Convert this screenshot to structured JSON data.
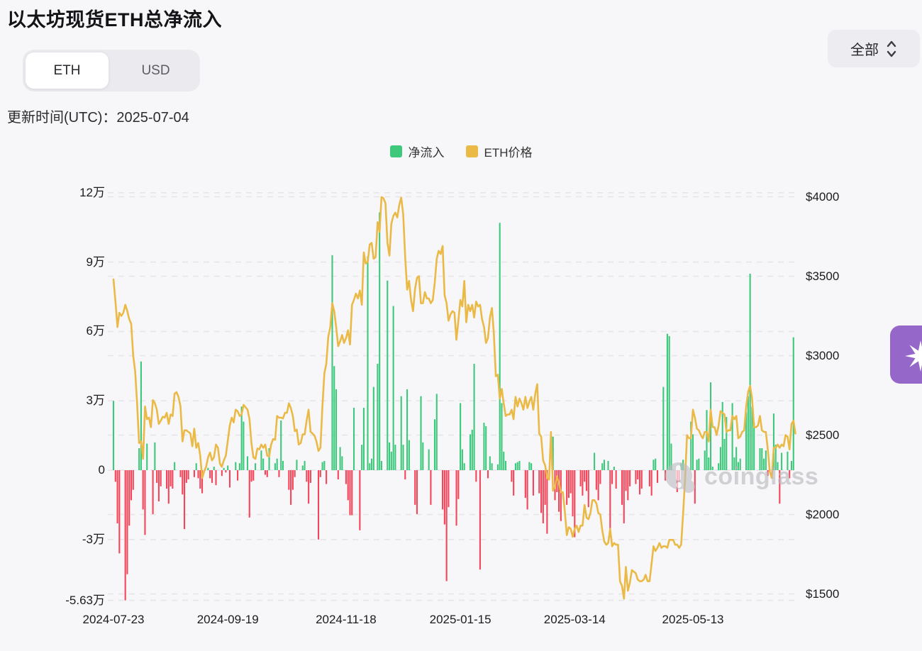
{
  "header": {
    "title": "以太坊现货ETH总净流入",
    "unit_toggle": {
      "options": [
        "ETH",
        "USD"
      ],
      "selected": "ETH"
    },
    "update_time": "更新时间(UTC)：2025-07-04",
    "range_selector": {
      "value": "全部"
    }
  },
  "legend": [
    {
      "label": "净流入",
      "color": "#3dc87c"
    },
    {
      "label": "ETH价格",
      "color": "#eab946"
    }
  ],
  "watermark": {
    "text": "coinglass"
  },
  "colors": {
    "bar_positive": "#3dc87c",
    "bar_negative": "#f4465a",
    "price_line": "#eab946",
    "gridline": "#e6e6ea",
    "fab_purple": "#9467c9"
  },
  "chart_data": {
    "type": "bar+line",
    "title": "以太坊现货ETH总净流入",
    "start_date": "2024-07-23",
    "end_date": "2025-07-04",
    "x_ticks": [
      {
        "label": "2024-07-23",
        "day": 0
      },
      {
        "label": "2024-09-19",
        "day": 58
      },
      {
        "label": "2024-11-18",
        "day": 118
      },
      {
        "label": "2025-01-15",
        "day": 176
      },
      {
        "label": "2025-03-14",
        "day": 234
      },
      {
        "label": "2025-05-13",
        "day": 294
      }
    ],
    "left_axis": {
      "unit": "万 ETH",
      "ticks": [
        {
          "label": "12万",
          "value": 12
        },
        {
          "label": "9万",
          "value": 9
        },
        {
          "label": "6万",
          "value": 6
        },
        {
          "label": "3万",
          "value": 3
        },
        {
          "label": "0",
          "value": 0
        },
        {
          "label": "-3万",
          "value": -3
        },
        {
          "label": "-5.63万",
          "value": -5.63
        }
      ]
    },
    "right_axis": {
      "unit": "USD",
      "ticks": [
        {
          "label": "$4000",
          "value": 4000
        },
        {
          "label": "$3500",
          "value": 3500
        },
        {
          "label": "$3000",
          "value": 3000
        },
        {
          "label": "$2500",
          "value": 2500
        },
        {
          "label": "$2000",
          "value": 2000
        },
        {
          "label": "$1500",
          "value": 1500
        }
      ]
    },
    "series": [
      {
        "name": "净流入",
        "type": "bar",
        "unit": "万ETH",
        "values": [
          3,
          -0.5,
          -2.3,
          -3.6,
          0,
          0,
          -5.63,
          -4.5,
          -2.4,
          -1.3,
          -0.85,
          0,
          0,
          0.95,
          4.7,
          -1.7,
          -2.8,
          1.15,
          0,
          0,
          -1.9,
          1.2,
          -0.55,
          -1.35,
          -0.7,
          0,
          0,
          -0.8,
          -1.45,
          -0.7,
          -0.8,
          0.35,
          0,
          0,
          -0.3,
          -1.05,
          -2.55,
          -0.55,
          -0.4,
          0,
          0,
          -0.3,
          0.3,
          -0.35,
          -0.8,
          -1,
          0,
          0,
          0.1,
          -0.35,
          -0.55,
          0.15,
          -0.65,
          0,
          0,
          -0.25,
          0.1,
          -0.1,
          0.2,
          -0.75,
          0,
          0,
          0.35,
          -0.45,
          0.3,
          2.75,
          2.1,
          0,
          0.6,
          -2.05,
          -0.5,
          -0.45,
          0.3,
          0,
          0,
          0.85,
          0.5,
          -0.2,
          -0.3,
          0.95,
          0,
          0,
          0.3,
          0.5,
          -0.3,
          2.15,
          0.4,
          0,
          0,
          -0.85,
          -1.5,
          -0.85,
          -0.3,
          0.45,
          0,
          0,
          0.2,
          0.4,
          -0.5,
          -1.45,
          -0.55,
          0,
          0,
          0,
          -3,
          -0.3,
          0.35,
          0.4,
          -0.6,
          0,
          0,
          9.3,
          4.5,
          3.5,
          -0.4,
          1,
          0.6,
          0,
          -0.6,
          -1.3,
          -1.95,
          -1.95,
          2.7,
          0,
          0,
          -2.6,
          1.1,
          2.7,
          0,
          9.25,
          0.3,
          0.5,
          3.6,
          0,
          4.6,
          11.15,
          0.4,
          0,
          0,
          8.2,
          1.2,
          0.8,
          7.1,
          1.1,
          0,
          0,
          3.2,
          1.1,
          -0.4,
          3.5,
          1.3,
          0,
          0,
          -1.5,
          -1.9,
          0,
          3.2,
          1.2,
          0,
          0,
          0.9,
          -1.5,
          0,
          2.2,
          3.3,
          0,
          0,
          -1.7,
          -2.35,
          -4.8,
          -1.6,
          0,
          0,
          0,
          -2.4,
          -1.25,
          2.9,
          0.9,
          0.3,
          0,
          0,
          1.55,
          1.75,
          4.6,
          -0.5,
          0,
          -4.3,
          0,
          2.05,
          1.9,
          -0.35,
          0.6,
          0.3,
          0,
          0,
          0.25,
          10.7,
          2.9,
          0.8,
          0.4,
          0,
          0,
          -0.5,
          -1.1,
          0.3,
          0.35,
          0.4,
          0,
          0,
          -1.2,
          -1.7,
          0.35,
          0.3,
          -1.1,
          0,
          0,
          -1,
          -1.85,
          -2.3,
          -1.5,
          -2.75,
          0,
          0,
          1.45,
          -1.3,
          -0.95,
          -1.8,
          -2.2,
          0,
          0,
          -1.5,
          -1.2,
          -1,
          -2,
          -2.9,
          0,
          0,
          -0.7,
          -1.1,
          -0.5,
          -0.9,
          -1.6,
          0,
          0,
          0.75,
          -0.85,
          -1.3,
          -0.6,
          0.3,
          0.45,
          0,
          0.4,
          -2.9,
          -0.6,
          0.15,
          -0.8,
          0,
          0,
          -1.5,
          -2.3,
          -0.9,
          -1.3,
          -0.7,
          0,
          0,
          -0.6,
          -0.4,
          -1.05,
          -0.8,
          0,
          0,
          0,
          -0.7,
          -1.1,
          0.45,
          0.5,
          -0.55,
          0,
          0,
          3.6,
          -0.45,
          5.9,
          5.8,
          1.15,
          0,
          0,
          -0.95,
          -0.5,
          0.3,
          0.45,
          0,
          0,
          0,
          2.1,
          1.55,
          -1.45,
          0.45,
          0.5,
          0,
          0,
          0.85,
          2.6,
          0.55,
          3.8,
          0.15,
          0,
          0,
          0.3,
          1,
          2.95,
          1.35,
          2.3,
          0,
          0,
          2.9,
          0.55,
          1,
          0.35,
          0.5,
          0,
          0,
          2.5,
          3.2,
          8.5,
          2.75,
          2.05,
          0,
          0,
          0.95,
          0.95,
          0.5,
          0.85,
          -0.25,
          0,
          0,
          2.45,
          1.1,
          0.35,
          -1.45,
          0.75,
          0,
          0,
          0.8,
          -0.35,
          0.4,
          5.75,
          0
        ]
      },
      {
        "name": "ETH价格",
        "type": "line",
        "unit": "USD",
        "values": [
          3480,
          3340,
          3180,
          3270,
          3250,
          3270,
          3320,
          3280,
          3230,
          3200,
          3000,
          2900,
          2700,
          2450,
          2460,
          2350,
          2680,
          2600,
          2610,
          2550,
          2720,
          2700,
          2660,
          2570,
          2590,
          2615,
          2610,
          2640,
          2570,
          2630,
          2620,
          2760,
          2770,
          2740,
          2680,
          2460,
          2530,
          2530,
          2520,
          2510,
          2430,
          2540,
          2420,
          2450,
          2370,
          2230,
          2270,
          2300,
          2360,
          2390,
          2340,
          2360,
          2440,
          2420,
          2320,
          2300,
          2340,
          2370,
          2465,
          2560,
          2610,
          2580,
          2660,
          2650,
          2620,
          2630,
          2690,
          2675,
          2660,
          2600,
          2450,
          2360,
          2350,
          2415,
          2410,
          2440,
          2420,
          2440,
          2370,
          2365,
          2440,
          2475,
          2470,
          2620,
          2610,
          2610,
          2605,
          2640,
          2640,
          2700,
          2670,
          2620,
          2525,
          2535,
          2440,
          2450,
          2505,
          2505,
          2590,
          2660,
          2520,
          2510,
          2495,
          2460,
          2400,
          2420,
          2680,
          2890,
          2950,
          3120,
          3180,
          3330,
          3280,
          3180,
          3060,
          3090,
          3130,
          3080,
          3110,
          3160,
          3070,
          3320,
          3350,
          3390,
          3360,
          3410,
          3320,
          3650,
          3580,
          3590,
          3700,
          3710,
          3610,
          3620,
          3840,
          3780,
          3998,
          3990,
          3960,
          3710,
          3630,
          3830,
          3880,
          3900,
          3870,
          3950,
          3995,
          3890,
          3620,
          3415,
          3470,
          3350,
          3280,
          3420,
          3490,
          3500,
          3330,
          3330,
          3400,
          3360,
          3360,
          3330,
          3350,
          3460,
          3610,
          3660,
          3640,
          3690,
          3380,
          3330,
          3220,
          3260,
          3280,
          3270,
          3100,
          3220,
          3350,
          3310,
          3470,
          3210,
          3320,
          3280,
          3320,
          3240,
          3340,
          3310,
          3320,
          3230,
          3180,
          3080,
          3110,
          3240,
          3300,
          3140,
          2870,
          2880,
          2730,
          2790,
          2700,
          2620,
          2630,
          2630,
          2660,
          2600,
          2740,
          2680,
          2730,
          2700,
          2660,
          2740,
          2670,
          2710,
          2740,
          2660,
          2760,
          2820,
          2510,
          2490,
          2340,
          2310,
          2230,
          2220,
          2520,
          2150,
          2170,
          2240,
          2200,
          2140,
          2140,
          2020,
          1870,
          1920,
          1910,
          1860,
          1910,
          1930,
          1890,
          1930,
          1930,
          2060,
          1980,
          1970,
          2010,
          2090,
          2090,
          2070,
          2010,
          2000,
          1900,
          1830,
          1810,
          1820,
          1910,
          1800,
          1820,
          1810,
          1810,
          1580,
          1550,
          1470,
          1670,
          1520,
          1570,
          1650,
          1640,
          1630,
          1590,
          1580,
          1580,
          1590,
          1620,
          1580,
          1580,
          1690,
          1800,
          1770,
          1790,
          1820,
          1790,
          1800,
          1800,
          1790,
          1840,
          1840,
          1840,
          1810,
          1810,
          1790,
          1810,
          2000,
          2220,
          2500,
          2480,
          2480,
          2660,
          2610,
          2540,
          2530,
          2500,
          2480,
          2520,
          2520,
          2460,
          2660,
          2550,
          2550,
          2500,
          2560,
          2650,
          2640,
          2630,
          2520,
          2530,
          2530,
          2620,
          2600,
          2620,
          2480,
          2490,
          2520,
          2530,
          2680,
          2770,
          2810,
          2730,
          2550,
          2550,
          2560,
          2620,
          2530,
          2520,
          2520,
          2410,
          2270,
          2230,
          2420,
          2420,
          2440,
          2420,
          2440,
          2430,
          2500,
          2490,
          2410,
          2570,
          2590,
          2510
        ]
      }
    ],
    "layout": {
      "grid": "dashed",
      "legend_position": "top-center",
      "left_ylim": [
        -56300,
        120000
      ],
      "right_ylim": [
        1500,
        4000
      ]
    }
  }
}
